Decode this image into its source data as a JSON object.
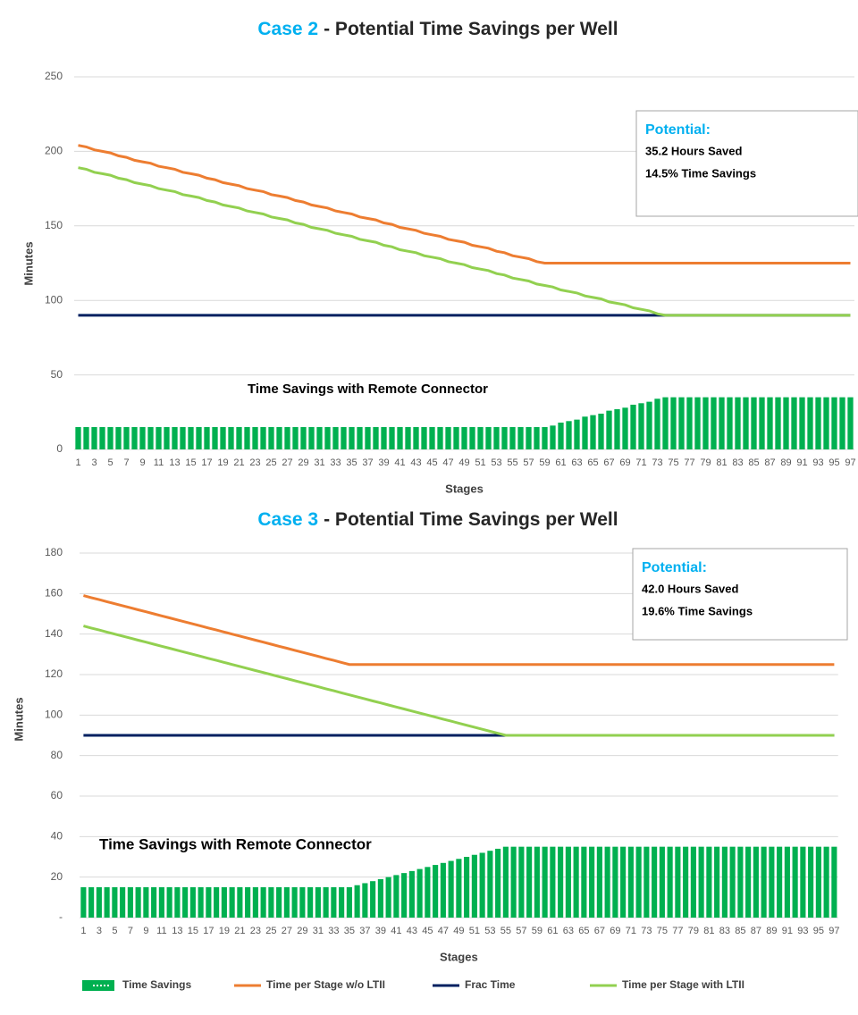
{
  "chart_data": [
    {
      "type": "combo",
      "title_case": "Case 2",
      "title": "- Potential Time Savings per Well",
      "x_label": "Stages",
      "y_label": "Minutes",
      "ylim": [
        0,
        250
      ],
      "yticks": [
        0,
        50,
        100,
        150,
        200,
        250
      ],
      "grid": true,
      "annotation": {
        "heading": "Potential:",
        "lines": [
          "35.2 Hours Saved",
          "14.5% Time Savings"
        ]
      },
      "bar_label": "Time Savings with Remote Connector",
      "categories": [
        1,
        null,
        3,
        null,
        5,
        null,
        7,
        null,
        9,
        null,
        11,
        null,
        13,
        null,
        15,
        null,
        17,
        null,
        19,
        null,
        21,
        null,
        23,
        null,
        25,
        null,
        27,
        null,
        29,
        null,
        31,
        null,
        33,
        null,
        35,
        null,
        37,
        null,
        39,
        null,
        41,
        null,
        43,
        null,
        45,
        null,
        47,
        null,
        49,
        null,
        51,
        null,
        53,
        null,
        55,
        null,
        57,
        null,
        59,
        null,
        61,
        null,
        63,
        null,
        65,
        null,
        67,
        null,
        69,
        null,
        71,
        null,
        73,
        null,
        75,
        null,
        77,
        null,
        79,
        null,
        81,
        null,
        83,
        null,
        85,
        null,
        87,
        null,
        89,
        null,
        91,
        null,
        93,
        null,
        95,
        null,
        97
      ],
      "series": [
        {
          "type": "bar",
          "color": "#00b050",
          "values": [
            15,
            15,
            15,
            15,
            15,
            15,
            15,
            15,
            15,
            15,
            15,
            15,
            15,
            15,
            15,
            15,
            15,
            15,
            15,
            15,
            15,
            15,
            15,
            15,
            15,
            15,
            15,
            15,
            15,
            15,
            15,
            15,
            15,
            15,
            15,
            15,
            15,
            15,
            15,
            15,
            15,
            15,
            15,
            15,
            15,
            15,
            15,
            15,
            15,
            15,
            15,
            15,
            15,
            15,
            15,
            15,
            15,
            15,
            15,
            16,
            18,
            19,
            20,
            22,
            23,
            24,
            26,
            27,
            28,
            30,
            31,
            32,
            34,
            35,
            35,
            35,
            35,
            35,
            35,
            35,
            35,
            35,
            35,
            35,
            35,
            35,
            35,
            35,
            35,
            35,
            35,
            35,
            35,
            35,
            35,
            35,
            35
          ]
        },
        {
          "type": "line",
          "color": "#ed7d31",
          "values": [
            204,
            203,
            201,
            200,
            199,
            197,
            196,
            194,
            193,
            192,
            190,
            189,
            188,
            186,
            185,
            184,
            182,
            181,
            179,
            178,
            177,
            175,
            174,
            173,
            171,
            170,
            169,
            167,
            166,
            164,
            163,
            162,
            160,
            159,
            158,
            156,
            155,
            154,
            152,
            151,
            149,
            148,
            147,
            145,
            144,
            143,
            141,
            140,
            139,
            137,
            136,
            135,
            133,
            132,
            130,
            129,
            128,
            126,
            125,
            125,
            125,
            125,
            125,
            125,
            125,
            125,
            125,
            125,
            125,
            125,
            125,
            125,
            125,
            125,
            125,
            125,
            125,
            125,
            125,
            125,
            125,
            125,
            125,
            125,
            125,
            125,
            125,
            125,
            125,
            125,
            125,
            125,
            125,
            125,
            125,
            125,
            125
          ]
        },
        {
          "type": "line",
          "color": "#002060",
          "values": [
            90,
            90,
            90,
            90,
            90,
            90,
            90,
            90,
            90,
            90,
            90,
            90,
            90,
            90,
            90,
            90,
            90,
            90,
            90,
            90,
            90,
            90,
            90,
            90,
            90,
            90,
            90,
            90,
            90,
            90,
            90,
            90,
            90,
            90,
            90,
            90,
            90,
            90,
            90,
            90,
            90,
            90,
            90,
            90,
            90,
            90,
            90,
            90,
            90,
            90,
            90,
            90,
            90,
            90,
            90,
            90,
            90,
            90,
            90,
            90,
            90,
            90,
            90,
            90,
            90,
            90,
            90,
            90,
            90,
            90,
            90,
            90,
            90,
            90,
            90,
            90,
            90,
            90,
            90,
            90,
            90,
            90,
            90,
            90,
            90,
            90,
            90,
            90,
            90,
            90,
            90,
            90,
            90,
            90,
            90,
            90,
            90
          ]
        },
        {
          "type": "line",
          "color": "#92d050",
          "values": [
            189,
            188,
            186,
            185,
            184,
            182,
            181,
            179,
            178,
            177,
            175,
            174,
            173,
            171,
            170,
            169,
            167,
            166,
            164,
            163,
            162,
            160,
            159,
            158,
            156,
            155,
            154,
            152,
            151,
            149,
            148,
            147,
            145,
            144,
            143,
            141,
            140,
            139,
            137,
            136,
            134,
            133,
            132,
            130,
            129,
            128,
            126,
            125,
            124,
            122,
            121,
            120,
            118,
            117,
            115,
            114,
            113,
            111,
            110,
            109,
            107,
            106,
            105,
            103,
            102,
            101,
            99,
            98,
            97,
            95,
            94,
            93,
            91,
            90,
            90,
            90,
            90,
            90,
            90,
            90,
            90,
            90,
            90,
            90,
            90,
            90,
            90,
            90,
            90,
            90,
            90,
            90,
            90,
            90,
            90,
            90,
            90
          ]
        }
      ]
    },
    {
      "type": "combo",
      "title_case": "Case 3",
      "title": "- Potential Time Savings per Well",
      "x_label": "Stages",
      "y_label": "Minutes",
      "ylim": [
        0,
        180
      ],
      "yticks": [
        {
          "value": 0,
          "label": "-"
        },
        20,
        40,
        60,
        80,
        100,
        120,
        140,
        160,
        180
      ],
      "grid": true,
      "annotation": {
        "heading": "Potential:",
        "lines": [
          "42.0 Hours Saved",
          "19.6% Time Savings"
        ]
      },
      "bar_label": "Time Savings with Remote Connector",
      "categories": [
        1,
        null,
        3,
        null,
        5,
        null,
        7,
        null,
        9,
        null,
        11,
        null,
        13,
        null,
        15,
        null,
        17,
        null,
        19,
        null,
        21,
        null,
        23,
        null,
        25,
        null,
        27,
        null,
        29,
        null,
        31,
        null,
        33,
        null,
        35,
        null,
        37,
        null,
        39,
        null,
        41,
        null,
        43,
        null,
        45,
        null,
        47,
        null,
        49,
        null,
        51,
        null,
        53,
        null,
        55,
        null,
        57,
        null,
        59,
        null,
        61,
        null,
        63,
        null,
        65,
        null,
        67,
        null,
        69,
        null,
        71,
        null,
        73,
        null,
        75,
        null,
        77,
        null,
        79,
        null,
        81,
        null,
        83,
        null,
        85,
        null,
        87,
        null,
        89,
        null,
        91,
        null,
        93,
        null,
        95,
        null,
        97
      ],
      "series": [
        {
          "type": "bar",
          "name": "Time Savings",
          "color": "#00b050",
          "values": [
            15,
            15,
            15,
            15,
            15,
            15,
            15,
            15,
            15,
            15,
            15,
            15,
            15,
            15,
            15,
            15,
            15,
            15,
            15,
            15,
            15,
            15,
            15,
            15,
            15,
            15,
            15,
            15,
            15,
            15,
            15,
            15,
            15,
            15,
            15,
            16,
            17,
            18,
            19,
            20,
            21,
            22,
            23,
            24,
            25,
            26,
            27,
            28,
            29,
            30,
            31,
            32,
            33,
            34,
            35,
            35,
            35,
            35,
            35,
            35,
            35,
            35,
            35,
            35,
            35,
            35,
            35,
            35,
            35,
            35,
            35,
            35,
            35,
            35,
            35,
            35,
            35,
            35,
            35,
            35,
            35,
            35,
            35,
            35,
            35,
            35,
            35,
            35,
            35,
            35,
            35,
            35,
            35,
            35,
            35,
            35,
            35
          ]
        },
        {
          "type": "line",
          "name": "Time per Stage w/o LTII",
          "color": "#ed7d31",
          "values": [
            159,
            158,
            157,
            156,
            155,
            154,
            153,
            152,
            151,
            150,
            149,
            148,
            147,
            146,
            145,
            144,
            143,
            142,
            141,
            140,
            139,
            138,
            137,
            136,
            135,
            134,
            133,
            132,
            131,
            130,
            129,
            128,
            127,
            126,
            125,
            125,
            125,
            125,
            125,
            125,
            125,
            125,
            125,
            125,
            125,
            125,
            125,
            125,
            125,
            125,
            125,
            125,
            125,
            125,
            125,
            125,
            125,
            125,
            125,
            125,
            125,
            125,
            125,
            125,
            125,
            125,
            125,
            125,
            125,
            125,
            125,
            125,
            125,
            125,
            125,
            125,
            125,
            125,
            125,
            125,
            125,
            125,
            125,
            125,
            125,
            125,
            125,
            125,
            125,
            125,
            125,
            125,
            125,
            125,
            125,
            125,
            125
          ]
        },
        {
          "type": "line",
          "name": "Frac Time",
          "color": "#002060",
          "values": [
            90,
            90,
            90,
            90,
            90,
            90,
            90,
            90,
            90,
            90,
            90,
            90,
            90,
            90,
            90,
            90,
            90,
            90,
            90,
            90,
            90,
            90,
            90,
            90,
            90,
            90,
            90,
            90,
            90,
            90,
            90,
            90,
            90,
            90,
            90,
            90,
            90,
            90,
            90,
            90,
            90,
            90,
            90,
            90,
            90,
            90,
            90,
            90,
            90,
            90,
            90,
            90,
            90,
            90,
            90,
            90,
            90,
            90,
            90,
            90,
            90,
            90,
            90,
            90,
            90,
            90,
            90,
            90,
            90,
            90,
            90,
            90,
            90,
            90,
            90,
            90,
            90,
            90,
            90,
            90,
            90,
            90,
            90,
            90,
            90,
            90,
            90,
            90,
            90,
            90,
            90,
            90,
            90,
            90,
            90,
            90,
            90
          ]
        },
        {
          "type": "line",
          "name": "Time per Stage with LTII",
          "color": "#92d050",
          "values": [
            144,
            143,
            142,
            141,
            140,
            139,
            138,
            137,
            136,
            135,
            134,
            133,
            132,
            131,
            130,
            129,
            128,
            127,
            126,
            125,
            124,
            123,
            122,
            121,
            120,
            119,
            118,
            117,
            116,
            115,
            114,
            113,
            112,
            111,
            110,
            109,
            108,
            107,
            106,
            105,
            104,
            103,
            102,
            101,
            100,
            99,
            98,
            97,
            96,
            95,
            94,
            93,
            92,
            91,
            90,
            90,
            90,
            90,
            90,
            90,
            90,
            90,
            90,
            90,
            90,
            90,
            90,
            90,
            90,
            90,
            90,
            90,
            90,
            90,
            90,
            90,
            90,
            90,
            90,
            90,
            90,
            90,
            90,
            90,
            90,
            90,
            90,
            90,
            90,
            90,
            90,
            90,
            90,
            90,
            90,
            90,
            90
          ]
        }
      ]
    }
  ]
}
